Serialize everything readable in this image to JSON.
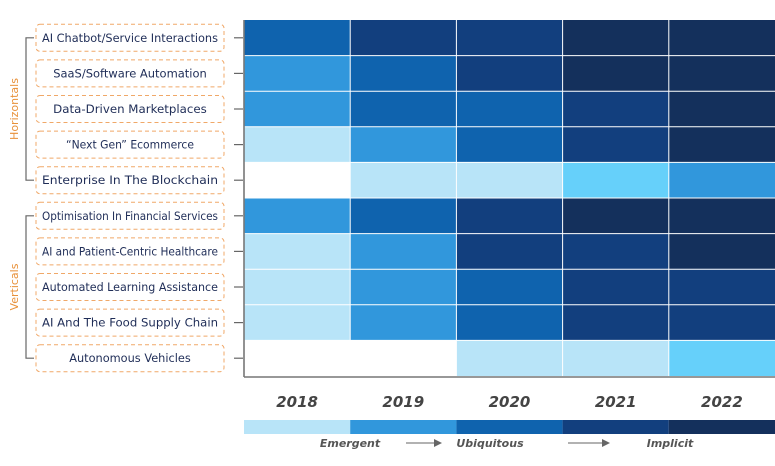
{
  "chart_data": {
    "type": "heatmap",
    "groups": [
      {
        "name": "Horizontals",
        "rows": [
          "AI Chatbot/Service Interactions",
          "SaaS/Software Automation",
          "Data-Driven Marketplaces",
          "“Next Gen” Ecommerce",
          "Enterprise In The Blockchain"
        ]
      },
      {
        "name": "Verticals",
        "rows": [
          "Optimisation In Financial Services",
          "AI and Patient-Centric Healthcare",
          "Automated Learning Assistance",
          "AI And The Food Supply Chain",
          "Autonomous Vehicles"
        ]
      }
    ],
    "rows": [
      "AI Chatbot/Service Interactions",
      "SaaS/Software Automation",
      "Data-Driven Marketplaces",
      "“Next Gen” Ecommerce",
      "Enterprise In The Blockchain",
      "Optimisation In Financial Services",
      "AI and Patient-Centric Healthcare",
      "Automated Learning Assistance",
      "AI And The Food Supply Chain",
      "Autonomous Vehicles"
    ],
    "columns": [
      "2018",
      "2019",
      "2020",
      "2021",
      "2022"
    ],
    "value_scale_note": "",
    "values": [
      [
        3,
        4,
        4,
        5,
        5
      ],
      [
        2,
        3,
        4,
        5,
        5
      ],
      [
        2,
        3,
        3,
        4,
        5
      ],
      [
        0,
        2,
        3,
        4,
        5
      ],
      [
        -1,
        0,
        0,
        1,
        2
      ],
      [
        2,
        3,
        4,
        5,
        5
      ],
      [
        0,
        2,
        4,
        4,
        5
      ],
      [
        0,
        2,
        3,
        4,
        4
      ],
      [
        0,
        2,
        3,
        4,
        4
      ],
      [
        -1,
        -1,
        0,
        0,
        1
      ]
    ],
    "legend": {
      "labels": [
        "Emergent",
        "Ubiquitous",
        "Implicit"
      ],
      "colors": [
        "#b8e4f8",
        "#3197dc",
        "#0f63ae",
        "#123f7e",
        "#14305c"
      ]
    },
    "colors": {
      "-1": "#ffffff",
      "0": "#b8e4f8",
      "1": "#66d0fa",
      "2": "#3197dc",
      "3": "#0f63ae",
      "4": "#123f7e",
      "5": "#14305c"
    },
    "label_border_color": "#f0a868",
    "group_label_color": "#e8913a"
  }
}
